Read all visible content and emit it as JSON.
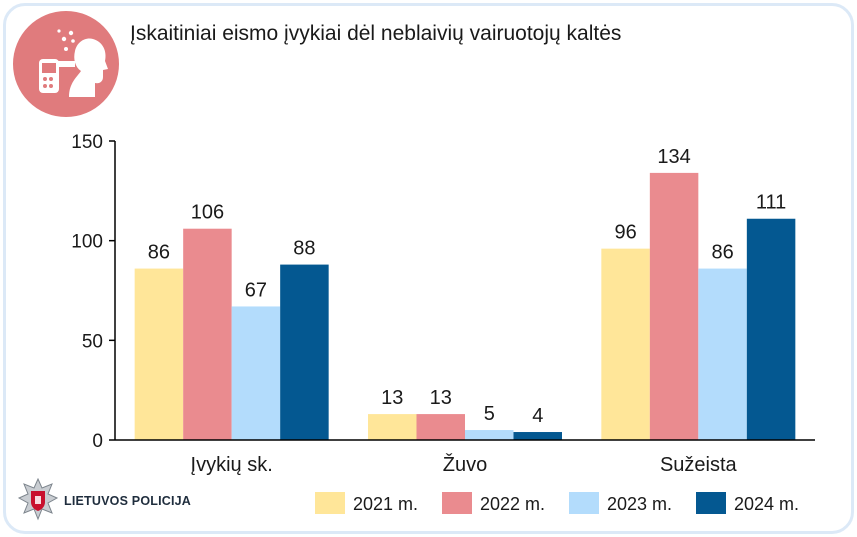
{
  "header": {
    "title": "Įskaitiniai eismo įvykiai dėl neblaivių vairuotojų kaltės",
    "badge_icon": "breathalyzer-icon"
  },
  "footer": {
    "logo_text": "LIETUVOS POLICIJA",
    "logo_icon": "police-star-icon"
  },
  "chart_data": {
    "type": "bar",
    "title": "Įskaitiniai eismo įvykiai dėl neblaivių vairuotojų kaltės",
    "categories": [
      "Įvykių sk.",
      "Žuvo",
      "Sužeista"
    ],
    "series": [
      {
        "name": "2021 m.",
        "color": "#ffe699",
        "values": [
          86,
          13,
          96
        ]
      },
      {
        "name": "2022 m.",
        "color": "#ea8b8f",
        "values": [
          106,
          13,
          134
        ]
      },
      {
        "name": "2023 m.",
        "color": "#b3dcfc",
        "values": [
          67,
          5,
          86
        ]
      },
      {
        "name": "2024 m.",
        "color": "#045891",
        "values": [
          88,
          4,
          111
        ]
      }
    ],
    "ylim": [
      0,
      150
    ],
    "yticks": [
      0,
      50,
      100,
      150
    ],
    "grid": false,
    "data_labels": true,
    "legend_position": "bottom-right"
  }
}
